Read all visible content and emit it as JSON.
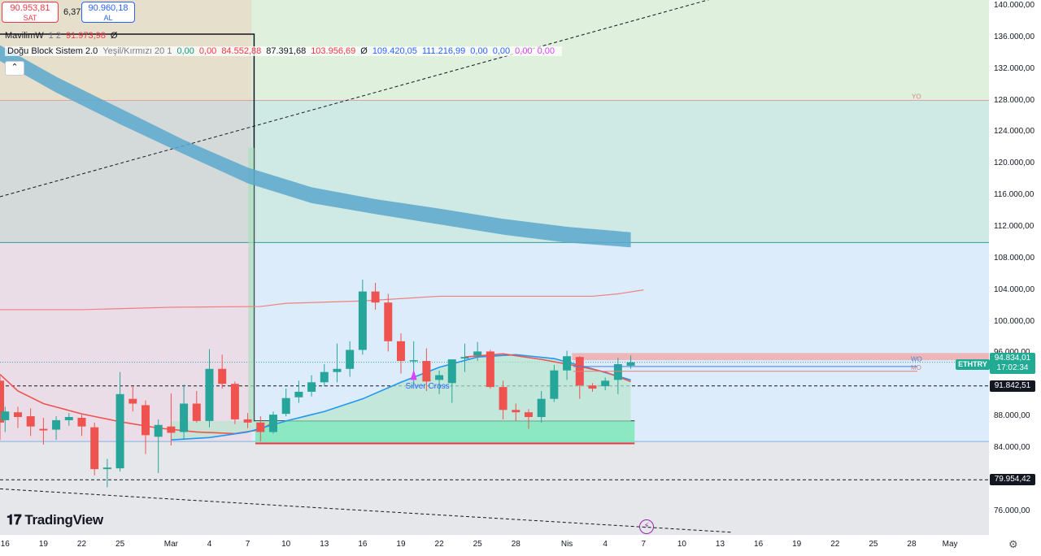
{
  "hud": {
    "sell_price": "90.953,81",
    "sell_label": "SAT",
    "spread": "6,37",
    "buy_price": "90.960,18",
    "buy_label": "AL"
  },
  "legend": {
    "row1": [
      {
        "text": "MavilimW",
        "color": "#131722"
      },
      {
        "text": "1 2",
        "color": "#787b86"
      },
      {
        "text": "91.973,98",
        "color": "#f23645"
      },
      {
        "text": "Ø",
        "color": "#131722"
      }
    ],
    "row2": [
      {
        "text": "Doğu Block Sistem 2.0",
        "color": "#131722"
      },
      {
        "text": "Yeşil/Kırmızı 20 1",
        "color": "#787b86"
      },
      {
        "text": "0,00",
        "color": "#089981"
      },
      {
        "text": "0,00",
        "color": "#f23645"
      },
      {
        "text": "84.552,88",
        "color": "#f23645"
      },
      {
        "text": "87.391,68",
        "color": "#131722"
      },
      {
        "text": "103.956,69",
        "color": "#f23645"
      },
      {
        "text": "Ø",
        "color": "#131722"
      },
      {
        "text": "109.420,05",
        "color": "#2962ff"
      },
      {
        "text": "111.216,99",
        "color": "#2962ff"
      },
      {
        "text": "0,00",
        "color": "#2962ff"
      },
      {
        "text": "0,00",
        "color": "#2962ff"
      },
      {
        "text": "0,00",
        "color": "#e040fb"
      },
      {
        "text": "0,00",
        "color": "#e040fb"
      }
    ],
    "collapse_icon": "chevron-up-icon"
  },
  "branding": {
    "logo_text": "TradingView"
  },
  "annotations": {
    "silver_cross": "Silver Cross",
    "yo_label": "YO",
    "wo_label": "WO",
    "mo_label": "MO"
  },
  "price_labels": {
    "symbol": "ETHTRY",
    "last_price": "94.834,01",
    "countdown": "17:02:34",
    "level_1": "91.842,51",
    "level_2": "79.954,42"
  },
  "colors": {
    "up": "#26a69a",
    "down": "#ef5350",
    "ma_blue": "#2196f3",
    "ma_red": "#ef5350",
    "band": "#5ba8cc"
  },
  "chart_data": {
    "type": "candlestick",
    "symbol": "ETHTRY",
    "y_axis": {
      "min": 74000,
      "max": 141000,
      "ticks": [
        {
          "value": 76000,
          "label": "76.000,00"
        },
        {
          "value": 84000,
          "label": "84.000,00"
        },
        {
          "value": 88000,
          "label": "88.000,00"
        },
        {
          "value": 96000,
          "label": "96.000,00"
        },
        {
          "value": 100000,
          "label": "100.000,00"
        },
        {
          "value": 104000,
          "label": "104.000,00"
        },
        {
          "value": 108000,
          "label": "108.000,00"
        },
        {
          "value": 112000,
          "label": "112.000,00"
        },
        {
          "value": 116000,
          "label": "116.000,00"
        },
        {
          "value": 120000,
          "label": "120.000,00"
        },
        {
          "value": 124000,
          "label": "124.000,00"
        },
        {
          "value": 128000,
          "label": "128.000,00"
        },
        {
          "value": 132000,
          "label": "132.000,00"
        },
        {
          "value": 136000,
          "label": "136.000,00"
        },
        {
          "value": 140000,
          "label": "140.000,00"
        }
      ]
    },
    "x_axis": {
      "day_range": [
        15.6,
        74.4
      ],
      "ticks": [
        {
          "day": 16,
          "label": "16"
        },
        {
          "day": 19,
          "label": "19"
        },
        {
          "day": 22,
          "label": "22"
        },
        {
          "day": 25,
          "label": "25"
        },
        {
          "day": 29,
          "label": "Mar"
        },
        {
          "day": 32,
          "label": "4"
        },
        {
          "day": 35,
          "label": "7"
        },
        {
          "day": 38,
          "label": "10"
        },
        {
          "day": 41,
          "label": "13"
        },
        {
          "day": 44,
          "label": "16"
        },
        {
          "day": 47,
          "label": "19"
        },
        {
          "day": 50,
          "label": "22"
        },
        {
          "day": 53,
          "label": "25"
        },
        {
          "day": 56,
          "label": "28"
        },
        {
          "day": 60,
          "label": "Nis"
        },
        {
          "day": 63,
          "label": "4"
        },
        {
          "day": 66,
          "label": "7"
        },
        {
          "day": 69,
          "label": "10"
        },
        {
          "day": 72,
          "label": "13"
        },
        {
          "day": 75,
          "label": "16"
        },
        {
          "day": 78,
          "label": "19"
        },
        {
          "day": 81,
          "label": "22"
        },
        {
          "day": 84,
          "label": "25"
        },
        {
          "day": 87,
          "label": "28"
        },
        {
          "day": 90,
          "label": "May"
        }
      ]
    },
    "candles": [
      [
        15.6,
        92500,
        93100,
        85000,
        87200
      ],
      [
        16,
        87500,
        89200,
        86000,
        88600
      ],
      [
        17,
        88500,
        89200,
        86500,
        87900
      ],
      [
        18,
        88000,
        89000,
        85500,
        86700
      ],
      [
        19,
        86400,
        87800,
        84400,
        86200
      ],
      [
        20,
        86300,
        88000,
        85000,
        87500
      ],
      [
        21,
        87500,
        88400,
        86800,
        87900
      ],
      [
        22,
        87800,
        88200,
        85500,
        86700
      ],
      [
        23,
        86600,
        87200,
        80500,
        81300
      ],
      [
        24,
        81300,
        82600,
        79000,
        81500
      ],
      [
        25,
        81400,
        93600,
        81000,
        90800
      ],
      [
        26,
        90200,
        91800,
        88600,
        89600
      ],
      [
        27,
        89400,
        90000,
        83200,
        85600
      ],
      [
        28,
        85400,
        87600,
        80800,
        86900
      ],
      [
        29,
        86700,
        90900,
        84300,
        85900
      ],
      [
        30,
        86000,
        92000,
        85000,
        89600
      ],
      [
        31,
        89600,
        91200,
        87200,
        87400
      ],
      [
        32,
        87400,
        96500,
        86600,
        94000
      ],
      [
        33,
        94000,
        95800,
        91500,
        92100
      ],
      [
        34,
        92100,
        92400,
        87000,
        87600
      ],
      [
        35,
        87600,
        88400,
        86500,
        87200
      ],
      [
        36,
        87200,
        88000,
        84800,
        86000
      ],
      [
        37,
        86000,
        88600,
        85800,
        88200
      ],
      [
        38,
        88300,
        91500,
        88000,
        90300
      ],
      [
        39,
        90400,
        92500,
        89700,
        91100
      ],
      [
        40,
        91100,
        93200,
        90500,
        92300
      ],
      [
        41,
        92300,
        94600,
        91800,
        93600
      ],
      [
        42,
        93600,
        97200,
        92300,
        94000
      ],
      [
        43,
        94000,
        97500,
        93000,
        96400
      ],
      [
        44,
        96400,
        105300,
        95800,
        103800
      ],
      [
        45,
        103800,
        104900,
        101500,
        102400
      ],
      [
        46,
        102400,
        103500,
        96200,
        97500
      ],
      [
        47,
        97500,
        98500,
        93400,
        95000
      ],
      [
        48,
        95000,
        97500,
        92000,
        95100
      ],
      [
        49,
        95000,
        96600,
        91200,
        92400
      ],
      [
        50,
        92600,
        93800,
        90800,
        93200
      ],
      [
        51,
        92200,
        95200,
        89700,
        95200
      ],
      [
        52,
        95300,
        97200,
        93600,
        95500
      ],
      [
        53,
        95700,
        97400,
        95000,
        96200
      ],
      [
        54,
        96200,
        96400,
        91500,
        91700
      ],
      [
        55,
        91700,
        92500,
        87600,
        88800
      ],
      [
        56,
        88800,
        89600,
        87400,
        88500
      ],
      [
        57,
        88500,
        88900,
        86400,
        87900
      ],
      [
        58,
        87900,
        91200,
        87200,
        90200
      ],
      [
        59,
        90200,
        94500,
        89800,
        93800
      ],
      [
        60,
        93800,
        96300,
        92600,
        95600
      ],
      [
        61,
        95500,
        95600,
        90200,
        91900
      ],
      [
        62,
        91900,
        92200,
        91100,
        91500
      ],
      [
        63,
        91800,
        92900,
        91300,
        92500
      ],
      [
        64,
        92600,
        95400,
        90800,
        94600
      ],
      [
        65,
        94400,
        95700,
        94000,
        94834
      ]
    ],
    "ma_blue": [
      [
        29,
        85000
      ],
      [
        32,
        85300
      ],
      [
        35,
        86000
      ],
      [
        38,
        87400
      ],
      [
        41,
        88600
      ],
      [
        44,
        90200
      ],
      [
        47,
        92300
      ],
      [
        50,
        94200
      ],
      [
        53,
        95500
      ],
      [
        56,
        95800
      ],
      [
        59,
        95300
      ],
      [
        62,
        94000
      ],
      [
        65,
        92600
      ]
    ],
    "ma_red": [
      [
        15.6,
        93300
      ],
      [
        17,
        91200
      ],
      [
        19,
        89600
      ],
      [
        22,
        88300
      ],
      [
        25,
        87300
      ],
      [
        28,
        86500
      ],
      [
        31,
        86000
      ],
      [
        34,
        85800
      ],
      [
        36,
        86300
      ],
      [
        37,
        87200
      ]
    ],
    "ma_red_2": [
      [
        52,
        95500
      ],
      [
        55,
        95900
      ],
      [
        58,
        95200
      ],
      [
        61,
        94300
      ],
      [
        63,
        93600
      ],
      [
        65,
        92400
      ]
    ],
    "upper_line": [
      [
        15.6,
        101500
      ],
      [
        22,
        101500
      ],
      [
        29,
        101800
      ],
      [
        36,
        101900
      ],
      [
        38,
        102300
      ],
      [
        44,
        102600
      ],
      [
        50,
        103200
      ],
      [
        56,
        103200
      ],
      [
        62,
        103200
      ],
      [
        64,
        103500
      ],
      [
        66,
        104000
      ]
    ],
    "band_upper": [
      [
        15.6,
        135000
      ],
      [
        20,
        131000
      ],
      [
        25,
        127000
      ],
      [
        30,
        123000
      ],
      [
        35,
        119500
      ],
      [
        40,
        117000
      ],
      [
        45,
        115500
      ],
      [
        50,
        114300
      ],
      [
        55,
        113000
      ],
      [
        60,
        112000
      ],
      [
        65,
        111300
      ]
    ],
    "band_lower": [
      [
        15.6,
        133000
      ],
      [
        20,
        129000
      ],
      [
        25,
        125000
      ],
      [
        30,
        121200
      ],
      [
        35,
        117500
      ],
      [
        40,
        115000
      ],
      [
        45,
        113600
      ],
      [
        50,
        112300
      ],
      [
        55,
        111000
      ],
      [
        60,
        110000
      ],
      [
        65,
        109400
      ]
    ],
    "levels": {
      "yo": 128000,
      "top_zone_floor": 110000,
      "light_blue_floor": 84800,
      "dashed_level": 91842.51,
      "support_level": 79954.42,
      "last_price": 94834.01,
      "green_block": [
        84552.88,
        87391.68
      ],
      "red_zone": [
        95100,
        96000
      ]
    },
    "zones": {
      "left_gray_end_day": 35.3,
      "vertical_marker_day": 35.5
    }
  }
}
